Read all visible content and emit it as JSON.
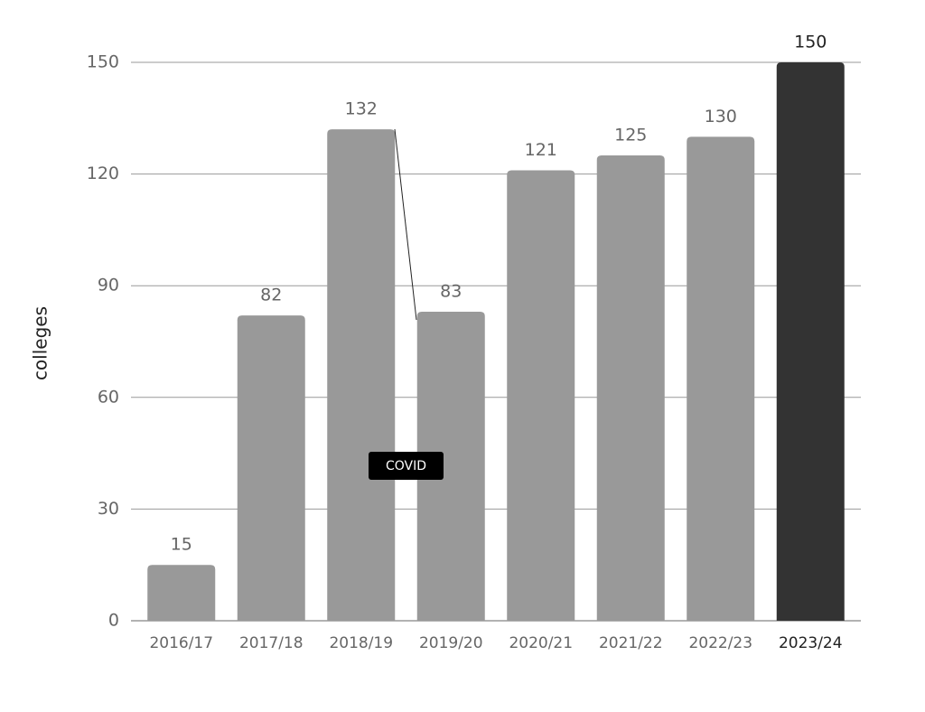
{
  "chart_data": {
    "type": "bar",
    "y_label": "colleges",
    "categories": [
      "2016/17",
      "2017/18",
      "2018/19",
      "2019/20",
      "2020/21",
      "2021/22",
      "2022/23",
      "2023/24"
    ],
    "values": [
      15,
      82,
      132,
      83,
      121,
      125,
      130,
      150
    ],
    "colors": [
      "#999999",
      "#999999",
      "#999999",
      "#999999",
      "#999999",
      "#999999",
      "#999999",
      "#333333"
    ],
    "ylim": [
      0,
      150
    ],
    "yticks": [
      0,
      30,
      60,
      90,
      120,
      150
    ],
    "grid": true,
    "annotations": [
      {
        "text": "COVID"
      }
    ]
  }
}
